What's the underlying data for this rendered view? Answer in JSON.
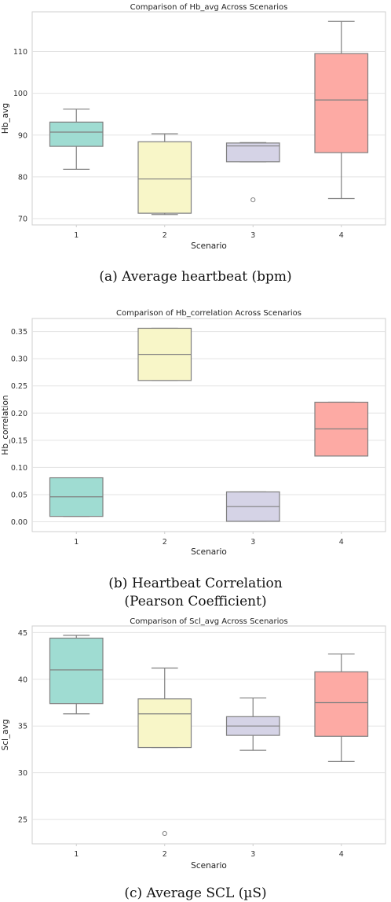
{
  "chart_data": [
    {
      "type": "box",
      "title": "Comparison of Hb_avg Across Scenarios",
      "xlabel": "Scenario",
      "ylabel": "Hb_avg",
      "categories": [
        "1",
        "2",
        "3",
        "4"
      ],
      "ylim": [
        68.5,
        119.5
      ],
      "yticks": [
        70,
        80,
        90,
        100,
        110
      ],
      "boxes": [
        {
          "whislo": 81.8,
          "q1": 87.3,
          "med": 90.7,
          "q3": 93.1,
          "whishi": 96.2,
          "fliers": [],
          "color": "#9fdcd2"
        },
        {
          "whislo": 71.0,
          "q1": 71.3,
          "med": 79.5,
          "q3": 88.4,
          "whishi": 90.3,
          "fliers": [],
          "color": "#f8f6c8"
        },
        {
          "whislo": 83.6,
          "q1": 83.6,
          "med": 87.4,
          "q3": 88.1,
          "whishi": 88.2,
          "fliers": [
            74.5
          ],
          "color": "#d5d3e6"
        },
        {
          "whislo": 74.8,
          "q1": 85.8,
          "med": 98.4,
          "q3": 109.5,
          "whishi": 117.2,
          "fliers": [],
          "color": "#fdaaa4"
        }
      ],
      "caption": "(a) Average heartbeat (bpm)"
    },
    {
      "type": "box",
      "title": "Comparison of Hb_correlation Across Scenarios",
      "xlabel": "Scenario",
      "ylabel": "Hb_correlation",
      "categories": [
        "1",
        "2",
        "3",
        "4"
      ],
      "ylim": [
        -0.018,
        0.374
      ],
      "yticks": [
        0.0,
        0.05,
        0.1,
        0.15,
        0.2,
        0.25,
        0.3,
        0.35
      ],
      "ytick_labels": [
        "0.00",
        "0.05",
        "0.10",
        "0.15",
        "0.20",
        "0.25",
        "0.30",
        "0.35"
      ],
      "boxes": [
        {
          "whislo": 0.01,
          "q1": 0.01,
          "med": 0.046,
          "q3": 0.081,
          "whishi": 0.081,
          "fliers": [],
          "color": "#9fdcd2"
        },
        {
          "whislo": 0.26,
          "q1": 0.26,
          "med": 0.308,
          "q3": 0.356,
          "whishi": 0.356,
          "fliers": [],
          "color": "#f8f6c8"
        },
        {
          "whislo": 0.001,
          "q1": 0.001,
          "med": 0.028,
          "q3": 0.055,
          "whishi": 0.055,
          "fliers": [],
          "color": "#d5d3e6"
        },
        {
          "whislo": 0.121,
          "q1": 0.121,
          "med": 0.171,
          "q3": 0.22,
          "whishi": 0.22,
          "fliers": [],
          "color": "#fdaaa4"
        }
      ],
      "caption": [
        "(b) Heartbeat Correlation",
        "(Pearson Coefficient)"
      ]
    },
    {
      "type": "box",
      "title": "Comparison of Scl_avg Across Scenarios",
      "xlabel": "Scenario",
      "ylabel": "Scl_avg",
      "categories": [
        "1",
        "2",
        "3",
        "4"
      ],
      "ylim": [
        22.4,
        45.7
      ],
      "yticks": [
        25,
        30,
        35,
        40,
        45
      ],
      "boxes": [
        {
          "whislo": 36.3,
          "q1": 37.4,
          "med": 41.0,
          "q3": 44.4,
          "whishi": 44.7,
          "fliers": [],
          "color": "#9fdcd2"
        },
        {
          "whislo": 32.7,
          "q1": 32.7,
          "med": 36.3,
          "q3": 37.9,
          "whishi": 41.2,
          "fliers": [
            23.5
          ],
          "color": "#f8f6c8"
        },
        {
          "whislo": 32.4,
          "q1": 34.0,
          "med": 35.0,
          "q3": 36.0,
          "whishi": 38.0,
          "fliers": [],
          "color": "#d5d3e6"
        },
        {
          "whislo": 31.2,
          "q1": 33.9,
          "med": 37.5,
          "q3": 40.8,
          "whishi": 42.7,
          "fliers": [],
          "color": "#fdaaa4"
        }
      ],
      "caption": "(c) Average SCL (µS)"
    }
  ]
}
